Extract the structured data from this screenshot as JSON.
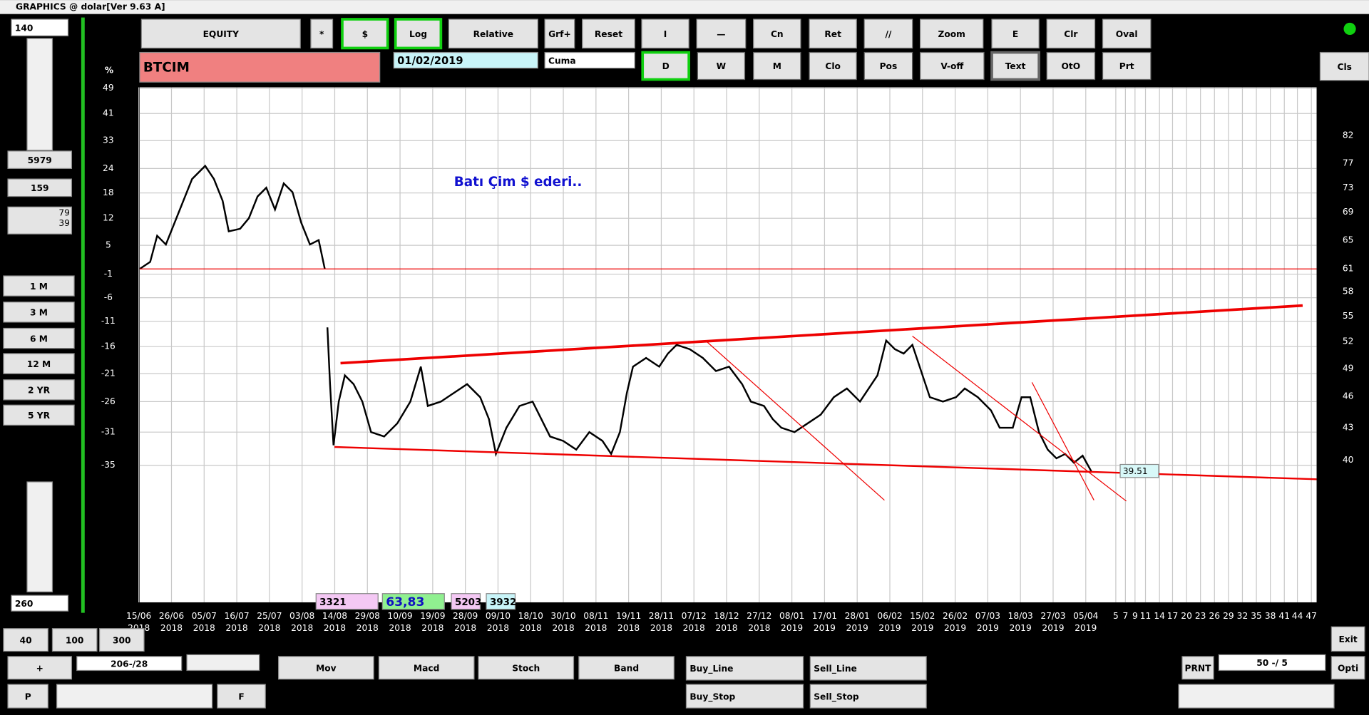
{
  "window": {
    "title": "GRAPHICS  @ dolar[Ver 9.63 A]"
  },
  "left_panel": {
    "count": "140",
    "value1": "5979",
    "value2": "159",
    "value3": "79",
    "value4": "39",
    "count2": "260",
    "periods": [
      "1 M",
      "3 M",
      "6 M",
      "12 M",
      "2 YR",
      "5 YR"
    ]
  },
  "toolbar": {
    "row1": [
      "EQUITY",
      "*",
      "$",
      "Log",
      "Relative",
      "Grf+",
      "Reset",
      "I",
      "—",
      "Cn",
      "Ret",
      "//",
      "Zoom",
      "E",
      "Clr",
      "Oval"
    ],
    "symbol": "BTCIM",
    "date": "01/02/2019",
    "day": "Cuma",
    "row2": [
      "D",
      "W",
      "M",
      "Clo",
      "Pos",
      "V-off",
      "Text",
      "OtO",
      "Prt"
    ],
    "close": "Cls"
  },
  "chart": {
    "left_unit": "%",
    "left_ticks": [
      "49",
      "41",
      "33",
      "24",
      "18",
      "12",
      "5",
      "-1",
      "-6",
      "-11",
      "-16",
      "-21",
      "-26",
      "-31",
      "-35"
    ],
    "right_ticks": [
      "82",
      "77",
      "73",
      "69",
      "65",
      "61",
      "58",
      "55",
      "52",
      "49",
      "46",
      "43",
      "40"
    ],
    "dates": [
      {
        "day": "15/06",
        "year": "2018"
      },
      {
        "day": "26/06",
        "year": "2018"
      },
      {
        "day": "05/07",
        "year": "2018"
      },
      {
        "day": "16/07",
        "year": "2018"
      },
      {
        "day": "25/07",
        "year": "2018"
      },
      {
        "day": "03/08",
        "year": "2018"
      },
      {
        "day": "14/08",
        "year": "2018"
      },
      {
        "day": "29/08",
        "year": "2018"
      },
      {
        "day": "10/09",
        "year": "2018"
      },
      {
        "day": "19/09",
        "year": "2018"
      },
      {
        "day": "28/09",
        "year": "2018"
      },
      {
        "day": "09/10",
        "year": "2018"
      },
      {
        "day": "18/10",
        "year": "2018"
      },
      {
        "day": "30/10",
        "year": "2018"
      },
      {
        "day": "08/11",
        "year": "2018"
      },
      {
        "day": "19/11",
        "year": "2018"
      },
      {
        "day": "28/11",
        "year": "2018"
      },
      {
        "day": "07/12",
        "year": "2018"
      },
      {
        "day": "18/12",
        "year": "2018"
      },
      {
        "day": "27/12",
        "year": "2018"
      },
      {
        "day": "08/01",
        "year": "2019"
      },
      {
        "day": "17/01",
        "year": "2019"
      },
      {
        "day": "28/01",
        "year": "2019"
      },
      {
        "day": "06/02",
        "year": "2019"
      },
      {
        "day": "15/02",
        "year": "2019"
      },
      {
        "day": "26/02",
        "year": "2019"
      },
      {
        "day": "07/03",
        "year": "2019"
      },
      {
        "day": "18/03",
        "year": "2019"
      },
      {
        "day": "27/03",
        "year": "2019"
      },
      {
        "day": "05/04",
        "year": "2019"
      }
    ],
    "future_ticks": [
      "5",
      "7",
      "9",
      "11",
      "14",
      "17",
      "20",
      "23",
      "26",
      "29",
      "32",
      "35",
      "38",
      "41",
      "44",
      "47"
    ],
    "annotation": "Batı Çim  $   ederi..",
    "price_label": "39.51",
    "info_boxes": [
      "3321",
      "63,83",
      "5203",
      "3932"
    ]
  },
  "bottom": {
    "zoom": [
      "40",
      "100",
      "300"
    ],
    "plus": "+",
    "position": "206-/28",
    "p": "P",
    "f": "F",
    "indicators": [
      "Mov",
      "Macd",
      "Stoch",
      "Band"
    ],
    "buy_line": "Buy_Line",
    "buy_stop": "Buy_Stop",
    "sell_line": "Sell_Line",
    "sell_stop": "Sell_Stop",
    "print": "PRNT",
    "ratio": "50 -/ 5",
    "exit": "Exit",
    "opti": "Opti"
  }
}
